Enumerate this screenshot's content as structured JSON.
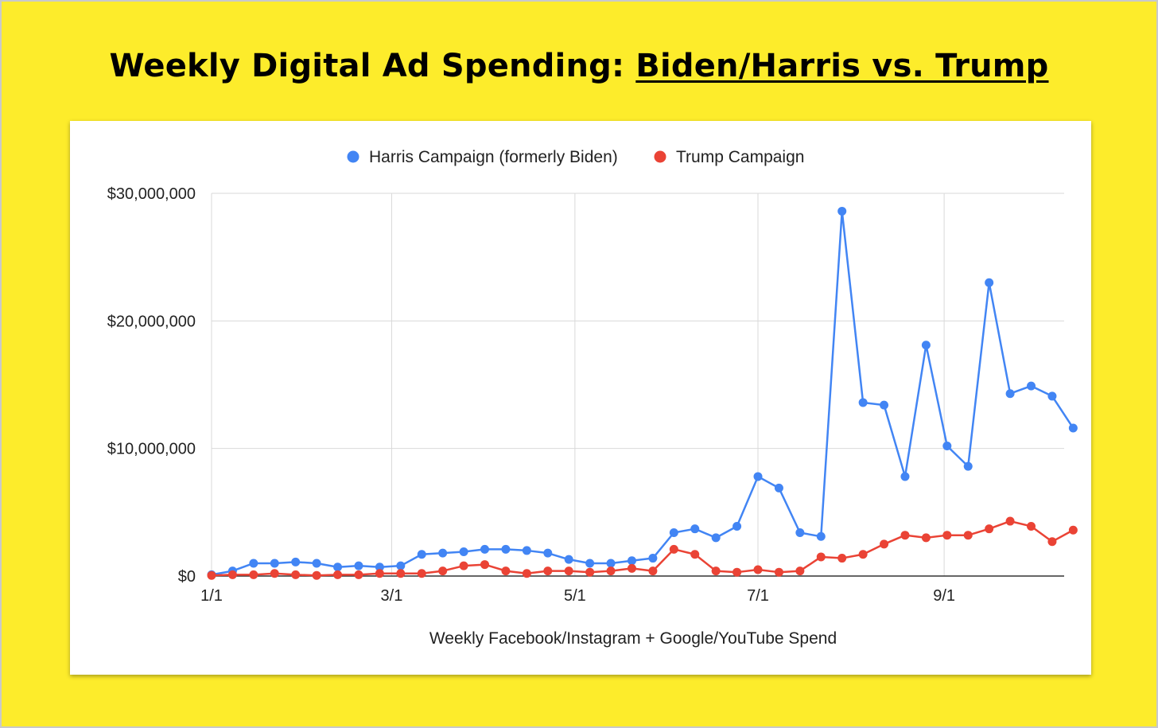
{
  "page": {
    "title_part1": "Weekly Digital Ad Spending: ",
    "title_part2": "Biden/Harris vs. Trump"
  },
  "colors": {
    "background": "#fdec2b",
    "harris": "#4285f4",
    "trump": "#ea4335",
    "grid": "#d9d9d9",
    "axis": "#333333"
  },
  "chart_data": {
    "type": "line",
    "xlabel": "Weekly Facebook/Instagram + Google/YouTube Spend",
    "ylabel": "",
    "ylim": [
      0,
      30000000
    ],
    "yticks": [
      0,
      10000000,
      20000000,
      30000000
    ],
    "ytick_labels": [
      "$0",
      "$10,000,000",
      "$20,000,000",
      "$30,000,000"
    ],
    "xticks": [
      {
        "label": "1/1",
        "week": 0
      },
      {
        "label": "3/1",
        "week": 8.57
      },
      {
        "label": "5/1",
        "week": 17.29
      },
      {
        "label": "7/1",
        "week": 26
      },
      {
        "label": "9/1",
        "week": 34.86
      }
    ],
    "grid": true,
    "legend_position": "top",
    "series": [
      {
        "name": "Harris Campaign (formerly Biden)",
        "color": "#4285f4",
        "values": [
          100000,
          400000,
          1000000,
          1000000,
          1100000,
          1000000,
          700000,
          800000,
          700000,
          800000,
          1700000,
          1800000,
          1900000,
          2100000,
          2100000,
          2000000,
          1800000,
          1300000,
          1000000,
          1000000,
          1200000,
          1400000,
          3400000,
          3700000,
          3000000,
          3900000,
          7800000,
          6900000,
          3400000,
          3100000,
          28600000,
          13600000,
          13400000,
          7800000,
          18100000,
          10200000,
          8600000,
          23000000,
          14300000,
          14900000,
          14100000,
          11600000
        ]
      },
      {
        "name": "Trump Campaign",
        "color": "#ea4335",
        "values": [
          50000,
          100000,
          100000,
          200000,
          100000,
          50000,
          100000,
          100000,
          200000,
          200000,
          200000,
          400000,
          800000,
          900000,
          400000,
          200000,
          400000,
          400000,
          300000,
          400000,
          600000,
          400000,
          2100000,
          1700000,
          400000,
          300000,
          500000,
          300000,
          400000,
          1500000,
          1400000,
          1700000,
          2500000,
          3200000,
          3000000,
          3200000,
          3200000,
          3700000,
          4300000,
          3900000,
          2700000,
          3600000
        ]
      }
    ]
  }
}
